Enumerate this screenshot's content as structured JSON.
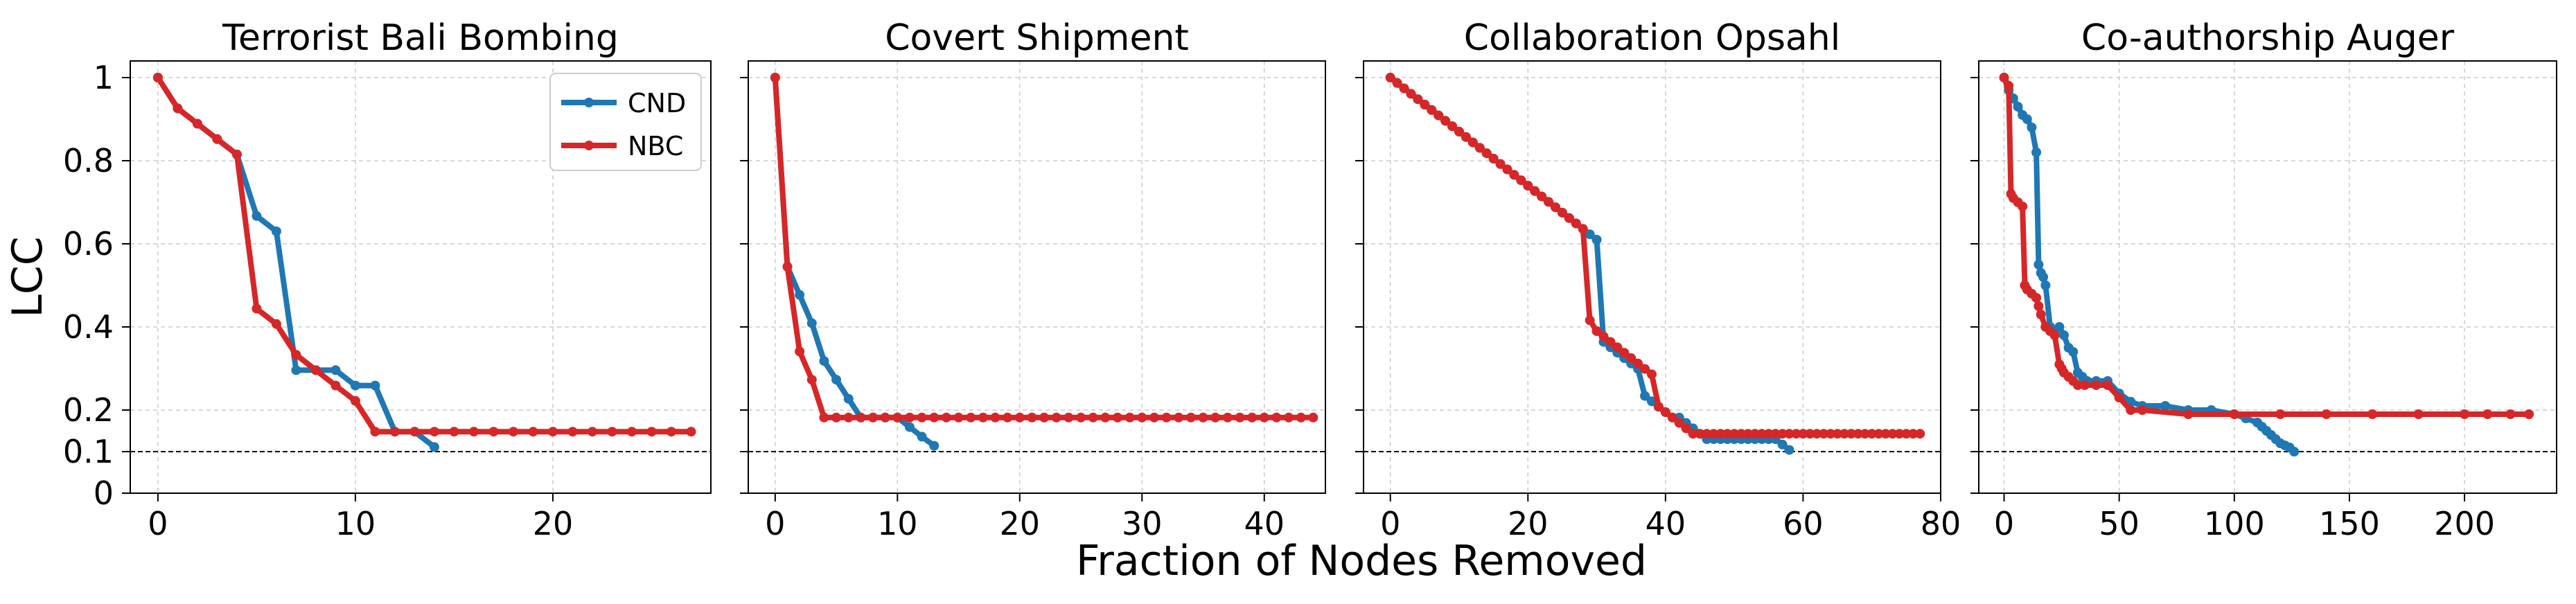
{
  "figure": {
    "ylabel": "LCC",
    "xlabel": "Fraction of Nodes Removed"
  },
  "legend": [
    {
      "name": "CND",
      "color": "#1f77b4"
    },
    {
      "name": "NBC",
      "color": "#d62728"
    }
  ],
  "reference_line": {
    "y": 0.1,
    "style": "dashed",
    "color": "#000000"
  },
  "chart_data": [
    {
      "type": "line",
      "title": "Terrorist Bali Bombing",
      "xlim": [
        -1.4,
        28
      ],
      "ylim": [
        0,
        1.04
      ],
      "xticks": [
        0,
        10,
        20
      ],
      "yticks": [
        0,
        0.1,
        0.2,
        0.4,
        0.6,
        0.8,
        1
      ],
      "ytick_labels": [
        "0",
        "0.1",
        "0.2",
        "0.4",
        "0.6",
        "0.8",
        "1"
      ],
      "grid": true,
      "legend_position": "top-right",
      "series": [
        {
          "name": "CND",
          "color": "#1f77b4",
          "x": [
            0,
            1,
            2,
            3,
            4,
            5,
            6,
            7,
            8,
            9,
            10,
            11,
            12,
            13,
            14
          ],
          "y": [
            1.0,
            0.926,
            0.889,
            0.852,
            0.815,
            0.667,
            0.63,
            0.296,
            0.296,
            0.296,
            0.259,
            0.259,
            0.148,
            0.148,
            0.111
          ]
        },
        {
          "name": "NBC",
          "color": "#d62728",
          "x": [
            0,
            1,
            2,
            3,
            4,
            5,
            6,
            7,
            8,
            9,
            10,
            11,
            12,
            13,
            14,
            15,
            16,
            17,
            18,
            19,
            20,
            21,
            22,
            23,
            24,
            25,
            26,
            27
          ],
          "y": [
            1.0,
            0.926,
            0.889,
            0.852,
            0.815,
            0.444,
            0.407,
            0.333,
            0.296,
            0.259,
            0.222,
            0.148,
            0.148,
            0.148,
            0.148,
            0.148,
            0.148,
            0.148,
            0.148,
            0.148,
            0.148,
            0.148,
            0.148,
            0.148,
            0.148,
            0.148,
            0.148,
            0.148
          ]
        }
      ]
    },
    {
      "type": "line",
      "title": "Covert Shipment",
      "xlim": [
        -2.2,
        45
      ],
      "ylim": [
        0,
        1.04
      ],
      "xticks": [
        0,
        10,
        20,
        30,
        40
      ],
      "yticks": [
        0,
        0.1,
        0.2,
        0.4,
        0.6,
        0.8,
        1
      ],
      "grid": true,
      "series": [
        {
          "name": "CND",
          "color": "#1f77b4",
          "x": [
            0,
            1,
            2,
            3,
            4,
            5,
            6,
            7,
            8,
            9,
            10,
            11,
            12,
            13
          ],
          "y": [
            1.0,
            0.545,
            0.477,
            0.409,
            0.318,
            0.273,
            0.227,
            0.182,
            0.182,
            0.182,
            0.182,
            0.159,
            0.136,
            0.114
          ]
        },
        {
          "name": "NBC",
          "color": "#d62728",
          "x": [
            0,
            1,
            2,
            3,
            4,
            5,
            6,
            7,
            8,
            9,
            10,
            11,
            12,
            13,
            14,
            15,
            16,
            17,
            18,
            19,
            20,
            21,
            22,
            23,
            24,
            25,
            26,
            27,
            28,
            29,
            30,
            31,
            32,
            33,
            34,
            35,
            36,
            37,
            38,
            39,
            40,
            41,
            42,
            43,
            44
          ],
          "y": [
            1.0,
            0.545,
            0.341,
            0.273,
            0.182,
            0.182,
            0.182,
            0.182,
            0.182,
            0.182,
            0.182,
            0.182,
            0.182,
            0.182,
            0.182,
            0.182,
            0.182,
            0.182,
            0.182,
            0.182,
            0.182,
            0.182,
            0.182,
            0.182,
            0.182,
            0.182,
            0.182,
            0.182,
            0.182,
            0.182,
            0.182,
            0.182,
            0.182,
            0.182,
            0.182,
            0.182,
            0.182,
            0.182,
            0.182,
            0.182,
            0.182,
            0.182,
            0.182,
            0.182,
            0.182
          ]
        }
      ]
    },
    {
      "type": "line",
      "title": "Collaboration Opsahl",
      "xlim": [
        -3.9,
        80
      ],
      "ylim": [
        0,
        1.04
      ],
      "xticks": [
        0,
        20,
        40,
        60,
        80
      ],
      "yticks": [
        0,
        0.1,
        0.2,
        0.4,
        0.6,
        0.8,
        1
      ],
      "grid": true,
      "series": [
        {
          "name": "CND",
          "color": "#1f77b4",
          "x": [
            0,
            1,
            2,
            3,
            4,
            5,
            6,
            7,
            8,
            9,
            10,
            11,
            12,
            13,
            14,
            15,
            16,
            17,
            18,
            19,
            20,
            21,
            22,
            23,
            24,
            25,
            26,
            27,
            28,
            29,
            30,
            31,
            32,
            33,
            34,
            35,
            36,
            37,
            38,
            39,
            40,
            41,
            42,
            43,
            44,
            45,
            46,
            47,
            48,
            49,
            50,
            51,
            52,
            53,
            54,
            55,
            56,
            57,
            58
          ],
          "y": [
            1.0,
            0.987,
            0.974,
            0.961,
            0.948,
            0.935,
            0.922,
            0.909,
            0.896,
            0.883,
            0.87,
            0.857,
            0.844,
            0.831,
            0.818,
            0.805,
            0.792,
            0.779,
            0.766,
            0.753,
            0.74,
            0.727,
            0.714,
            0.701,
            0.688,
            0.675,
            0.662,
            0.649,
            0.636,
            0.623,
            0.61,
            0.364,
            0.351,
            0.338,
            0.325,
            0.312,
            0.299,
            0.234,
            0.221,
            0.208,
            0.195,
            0.182,
            0.182,
            0.169,
            0.156,
            0.143,
            0.13,
            0.13,
            0.13,
            0.13,
            0.13,
            0.13,
            0.13,
            0.13,
            0.13,
            0.13,
            0.13,
            0.117,
            0.104
          ]
        },
        {
          "name": "NBC",
          "color": "#d62728",
          "x": [
            0,
            1,
            2,
            3,
            4,
            5,
            6,
            7,
            8,
            9,
            10,
            11,
            12,
            13,
            14,
            15,
            16,
            17,
            18,
            19,
            20,
            21,
            22,
            23,
            24,
            25,
            26,
            27,
            28,
            29,
            30,
            31,
            32,
            33,
            34,
            35,
            36,
            37,
            38,
            39,
            40,
            41,
            42,
            43,
            44,
            45,
            46,
            47,
            48,
            49,
            50,
            51,
            52,
            53,
            54,
            55,
            56,
            57,
            58,
            59,
            60,
            61,
            62,
            63,
            64,
            65,
            66,
            67,
            68,
            69,
            70,
            71,
            72,
            73,
            74,
            75,
            76,
            77
          ],
          "y": [
            1.0,
            0.987,
            0.974,
            0.961,
            0.948,
            0.935,
            0.922,
            0.909,
            0.896,
            0.883,
            0.87,
            0.857,
            0.844,
            0.831,
            0.818,
            0.805,
            0.792,
            0.779,
            0.766,
            0.753,
            0.74,
            0.727,
            0.714,
            0.701,
            0.688,
            0.675,
            0.662,
            0.649,
            0.636,
            0.416,
            0.39,
            0.377,
            0.364,
            0.351,
            0.338,
            0.325,
            0.312,
            0.299,
            0.286,
            0.208,
            0.195,
            0.182,
            0.169,
            0.156,
            0.143,
            0.143,
            0.143,
            0.143,
            0.143,
            0.143,
            0.143,
            0.143,
            0.143,
            0.143,
            0.143,
            0.143,
            0.143,
            0.143,
            0.143,
            0.143,
            0.143,
            0.143,
            0.143,
            0.143,
            0.143,
            0.143,
            0.143,
            0.143,
            0.143,
            0.143,
            0.143,
            0.143,
            0.143,
            0.143,
            0.143,
            0.143,
            0.143,
            0.143
          ]
        }
      ]
    },
    {
      "type": "line",
      "title": "Co-authorship Auger",
      "xlim": [
        -11,
        240
      ],
      "ylim": [
        0,
        1.04
      ],
      "xticks": [
        0,
        50,
        100,
        150,
        200
      ],
      "yticks": [
        0,
        0.1,
        0.2,
        0.4,
        0.6,
        0.8,
        1
      ],
      "grid": true,
      "series": [
        {
          "name": "CND",
          "color": "#1f77b4",
          "x": [
            0,
            2,
            4,
            6,
            8,
            10,
            12,
            14,
            15,
            16,
            17,
            18,
            20,
            22,
            24,
            26,
            28,
            30,
            32,
            34,
            36,
            40,
            45,
            50,
            55,
            60,
            70,
            80,
            90,
            100,
            105,
            110,
            112,
            114,
            116,
            118,
            120,
            122,
            124,
            126
          ],
          "y": [
            1.0,
            0.97,
            0.95,
            0.93,
            0.91,
            0.9,
            0.88,
            0.82,
            0.55,
            0.53,
            0.52,
            0.5,
            0.4,
            0.39,
            0.4,
            0.38,
            0.35,
            0.34,
            0.29,
            0.28,
            0.27,
            0.27,
            0.27,
            0.24,
            0.22,
            0.21,
            0.21,
            0.2,
            0.2,
            0.19,
            0.18,
            0.17,
            0.16,
            0.15,
            0.14,
            0.13,
            0.12,
            0.115,
            0.11,
            0.1
          ]
        },
        {
          "name": "NBC",
          "color": "#d62728",
          "x": [
            0,
            2,
            3,
            4,
            6,
            8,
            9,
            10,
            12,
            14,
            15,
            16,
            18,
            20,
            22,
            24,
            25,
            26,
            28,
            30,
            32,
            35,
            40,
            45,
            50,
            55,
            60,
            80,
            100,
            120,
            140,
            160,
            180,
            200,
            210,
            220,
            228
          ],
          "y": [
            1.0,
            0.98,
            0.72,
            0.71,
            0.7,
            0.69,
            0.5,
            0.49,
            0.48,
            0.47,
            0.45,
            0.43,
            0.4,
            0.39,
            0.38,
            0.31,
            0.3,
            0.29,
            0.28,
            0.27,
            0.26,
            0.26,
            0.26,
            0.26,
            0.23,
            0.2,
            0.2,
            0.19,
            0.19,
            0.19,
            0.19,
            0.19,
            0.19,
            0.19,
            0.19,
            0.19,
            0.19
          ]
        }
      ]
    }
  ]
}
